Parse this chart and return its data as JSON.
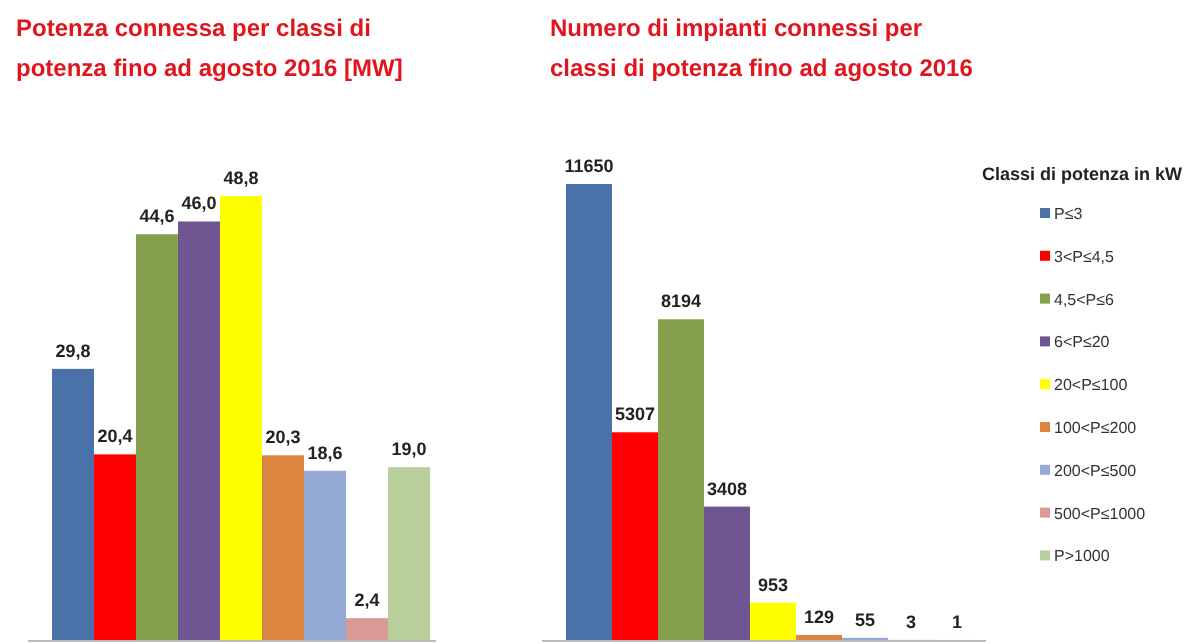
{
  "chart_data": [
    {
      "type": "bar",
      "title": "Potenza connessa per classi di potenza fino ad agosto 2016 [MW]",
      "categories": [
        null
      ],
      "series": [
        {
          "color": "#4a72a8",
          "values": [
            29.8
          ],
          "value_labels": [
            "29,8"
          ]
        },
        {
          "color": "#ff0000",
          "values": [
            20.4
          ],
          "value_labels": [
            "20,4"
          ]
        },
        {
          "color": "#86a14e",
          "values": [
            44.6
          ],
          "value_labels": [
            "44,6"
          ]
        },
        {
          "color": "#6f5591",
          "values": [
            46.0
          ],
          "value_labels": [
            "46,0"
          ]
        },
        {
          "color": "#ffff00",
          "values": [
            48.8
          ],
          "value_labels": [
            "48,8"
          ]
        },
        {
          "color": "#dc8540",
          "values": [
            20.3
          ],
          "value_labels": [
            "20,3"
          ]
        },
        {
          "color": "#94aad4",
          "values": [
            18.6
          ],
          "value_labels": [
            "18,6"
          ]
        },
        {
          "color": "#da9a98",
          "values": [
            2.4
          ],
          "value_labels": [
            "2,4"
          ]
        },
        {
          "color": "#b8cf9c",
          "values": [
            19.0
          ],
          "value_labels": [
            "19,0"
          ]
        }
      ]
    },
    {
      "type": "bar",
      "title": "Numero di impianti connessi per classi di potenza fino ad agosto 2016",
      "categories": [
        null
      ],
      "data_labels": true,
      "legend": "right",
      "legend_title": "Classi di potenza in kW",
      "series": [
        {
          "name": "P≤3",
          "color": "#4a72a8",
          "values": [
            11650
          ]
        },
        {
          "name": "3<P≤4,5",
          "color": "#ff0000",
          "values": [
            5307
          ]
        },
        {
          "name": "4,5<P≤6",
          "color": "#86a14e",
          "values": [
            8194
          ]
        },
        {
          "name": "6<P≤20",
          "color": "#6f5591",
          "values": [
            3408
          ]
        },
        {
          "name": "20<P≤100",
          "color": "#ffff00",
          "values": [
            953
          ]
        },
        {
          "name": "100<P≤200",
          "color": "#dc8540",
          "values": [
            129
          ]
        },
        {
          "name": "200<P≤500",
          "color": "#94aad4",
          "values": [
            55
          ]
        },
        {
          "name": "500<P≤1000",
          "color": "#da9a98",
          "values": [
            3
          ]
        },
        {
          "name": "P>1000",
          "color": "#b8cf9c",
          "values": [
            1
          ]
        }
      ]
    }
  ]
}
